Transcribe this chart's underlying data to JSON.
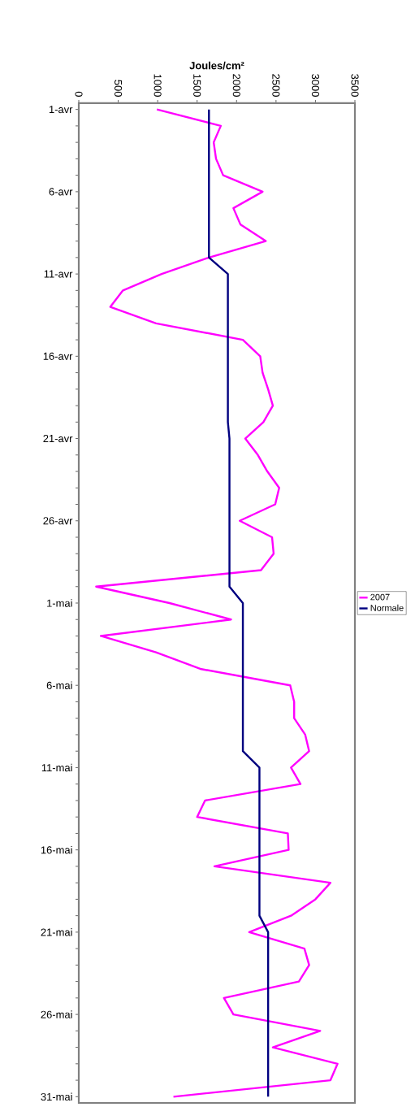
{
  "chart_data": {
    "type": "line",
    "orientation": "horizontal",
    "xlabel": "Joules/cm²",
    "categories": [
      "1-avr",
      null,
      null,
      null,
      null,
      "6-avr",
      null,
      null,
      null,
      null,
      "11-avr",
      null,
      null,
      null,
      null,
      "16-avr",
      null,
      null,
      null,
      null,
      "21-avr",
      null,
      null,
      null,
      null,
      "26-avr",
      null,
      null,
      null,
      null,
      "1-mai",
      null,
      null,
      null,
      null,
      "6-mai",
      null,
      null,
      null,
      null,
      "11-mai",
      null,
      null,
      null,
      null,
      "16-mai",
      null,
      null,
      null,
      null,
      "21-mai",
      null,
      null,
      null,
      null,
      "26-mai",
      null,
      null,
      null,
      null,
      "31-mai"
    ],
    "xlim": [
      0,
      3500
    ],
    "xticks": [
      0,
      500,
      1000,
      1500,
      2000,
      2500,
      3000,
      3500
    ],
    "legend": "right",
    "grid": false,
    "series": [
      {
        "name": "2007",
        "color": "#ff00ff",
        "values": [
          990,
          1800,
          1710,
          1740,
          1830,
          2330,
          1960,
          2050,
          2370,
          1650,
          1050,
          560,
          400,
          980,
          2080,
          2300,
          2330,
          2400,
          2460,
          2340,
          2110,
          2270,
          2390,
          2540,
          2490,
          2040,
          2450,
          2470,
          2310,
          220,
          1150,
          1930,
          280,
          980,
          1540,
          2680,
          2730,
          2730,
          2870,
          2920,
          2690,
          2810,
          1600,
          1500,
          2650,
          2660,
          1720,
          3190,
          3000,
          2690,
          2160,
          2860,
          2920,
          2790,
          1840,
          1960,
          3060,
          2460,
          3280,
          3190,
          1200
        ]
      },
      {
        "name": "Normale",
        "color": "#000080",
        "values": [
          1650,
          1650,
          1650,
          1650,
          1650,
          1650,
          1650,
          1650,
          1650,
          1650,
          1890,
          1890,
          1890,
          1890,
          1890,
          1890,
          1890,
          1890,
          1890,
          1890,
          1910,
          1910,
          1910,
          1910,
          1910,
          1910,
          1910,
          1910,
          1910,
          1910,
          2080,
          2080,
          2080,
          2080,
          2080,
          2080,
          2080,
          2080,
          2080,
          2080,
          2290,
          2290,
          2290,
          2290,
          2290,
          2290,
          2290,
          2290,
          2290,
          2290,
          2400,
          2400,
          2400,
          2400,
          2400,
          2400,
          2400,
          2400,
          2400,
          2400,
          2400
        ]
      }
    ]
  }
}
